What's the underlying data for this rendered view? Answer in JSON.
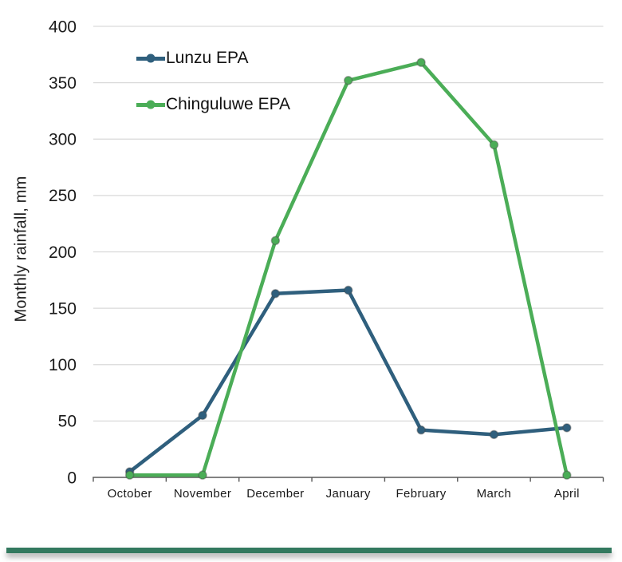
{
  "chart_data": {
    "type": "line",
    "categories": [
      "October",
      "November",
      "December",
      "January",
      "February",
      "March",
      "April"
    ],
    "series": [
      {
        "name": "Lunzu EPA",
        "color": "#2f5f7d",
        "values": [
          5,
          55,
          163,
          166,
          42,
          38,
          44
        ]
      },
      {
        "name": "Chinguluwe EPA",
        "color": "#4bad57",
        "values": [
          2,
          2,
          210,
          352,
          368,
          295,
          2
        ]
      }
    ],
    "title": "",
    "xlabel": "",
    "ylabel": "Monthly rainfall, mm",
    "ylim": [
      0,
      400
    ],
    "yticks": [
      0,
      50,
      100,
      150,
      200,
      250,
      300,
      350,
      400
    ],
    "grid": "horizontal",
    "legend_position": "top-left-inside"
  },
  "colors": {
    "background": "#ffffff",
    "gridline": "#d9d9d9",
    "axis_line": "#595959",
    "tick_mark": "#595959",
    "tick_label": "#1a1a1a",
    "footer_bar": "#33795f"
  }
}
